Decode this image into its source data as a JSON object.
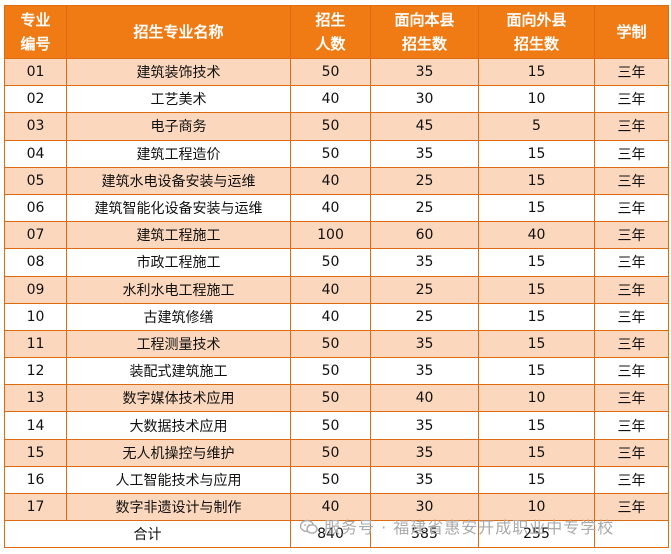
{
  "headers": {
    "no": [
      "专业",
      "编号"
    ],
    "name": [
      "招生专业名称"
    ],
    "total": [
      "招生",
      "人数"
    ],
    "local": [
      "面向本县",
      "招生数"
    ],
    "outside": [
      "面向外县",
      "招生数"
    ],
    "duration": [
      "学制"
    ]
  },
  "rows": [
    {
      "no": "01",
      "name": "建筑装饰技术",
      "total": "50",
      "local": "35",
      "outside": "15",
      "duration": "三年"
    },
    {
      "no": "02",
      "name": "工艺美术",
      "total": "40",
      "local": "30",
      "outside": "10",
      "duration": "三年"
    },
    {
      "no": "03",
      "name": "电子商务",
      "total": "50",
      "local": "45",
      "outside": "5",
      "duration": "三年"
    },
    {
      "no": "04",
      "name": "建筑工程造价",
      "total": "50",
      "local": "35",
      "outside": "15",
      "duration": "三年"
    },
    {
      "no": "05",
      "name": "建筑水电设备安装与运维",
      "total": "40",
      "local": "25",
      "outside": "15",
      "duration": "三年"
    },
    {
      "no": "06",
      "name": "建筑智能化设备安装与运维",
      "total": "40",
      "local": "25",
      "outside": "15",
      "duration": "三年"
    },
    {
      "no": "07",
      "name": "建筑工程施工",
      "total": "100",
      "local": "60",
      "outside": "40",
      "duration": "三年"
    },
    {
      "no": "08",
      "name": "市政工程施工",
      "total": "50",
      "local": "35",
      "outside": "15",
      "duration": "三年"
    },
    {
      "no": "09",
      "name": "水利水电工程施工",
      "total": "40",
      "local": "25",
      "outside": "15",
      "duration": "三年"
    },
    {
      "no": "10",
      "name": "古建筑修缮",
      "total": "40",
      "local": "25",
      "outside": "15",
      "duration": "三年"
    },
    {
      "no": "11",
      "name": "工程测量技术",
      "total": "50",
      "local": "35",
      "outside": "15",
      "duration": "三年"
    },
    {
      "no": "12",
      "name": "装配式建筑施工",
      "total": "50",
      "local": "35",
      "outside": "15",
      "duration": "三年"
    },
    {
      "no": "13",
      "name": "数字媒体技术应用",
      "total": "50",
      "local": "40",
      "outside": "10",
      "duration": "三年"
    },
    {
      "no": "14",
      "name": "大数据技术应用",
      "total": "50",
      "local": "35",
      "outside": "15",
      "duration": "三年"
    },
    {
      "no": "15",
      "name": "无人机操控与维护",
      "total": "50",
      "local": "35",
      "outside": "15",
      "duration": "三年"
    },
    {
      "no": "16",
      "name": "人工智能技术与应用",
      "total": "50",
      "local": "35",
      "outside": "15",
      "duration": "三年"
    },
    {
      "no": "17",
      "name": "数字非遗设计与制作",
      "total": "40",
      "local": "30",
      "outside": "10",
      "duration": "三年"
    }
  ],
  "footer": {
    "label": "合计",
    "total": "840",
    "local": "585",
    "outside": "255"
  },
  "watermark": {
    "text": "服务号 · 福建省惠安开成职业中专学校"
  },
  "colors": {
    "header_bg": "#f07b14",
    "stripe_bg": "#fbd8bd",
    "border": "#e06a10"
  }
}
